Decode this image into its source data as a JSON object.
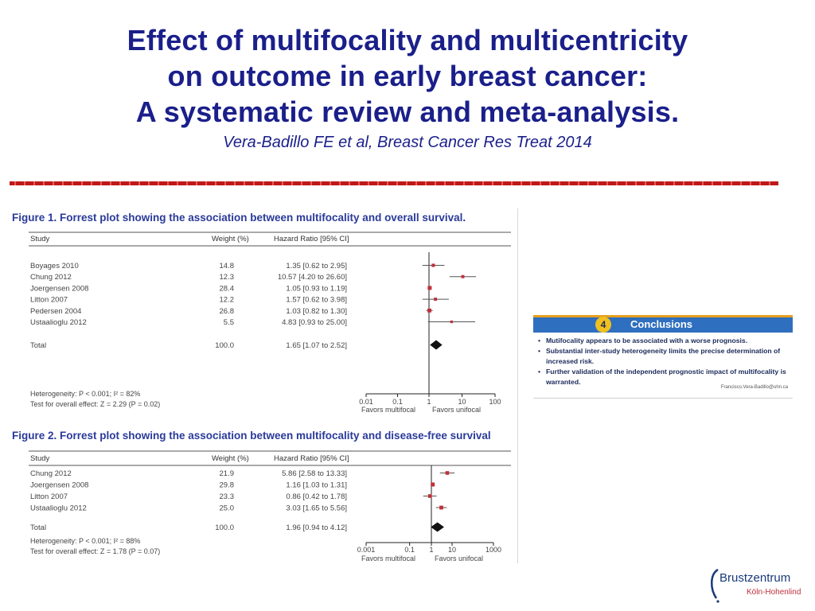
{
  "slide": {
    "title_lines": [
      "Effect of multifocality and multicentricity",
      "on outcome in early breast cancer:",
      "A systematic review and meta-analysis."
    ],
    "citation": "Vera-Badillo FE et al, Breast Cancer Res Treat 2014"
  },
  "colors": {
    "title": "#1a1f8a",
    "divider": "#c01818",
    "figure_title": "#2a3a9a",
    "point": "#c0303a",
    "conclusions_header": "#2f6fbf",
    "conclusions_badge": "#f0c020"
  },
  "chart_data": [
    {
      "type": "forest",
      "title": "Figure 1. Forrest plot showing the association between multifocality and overall survival.",
      "columns": [
        "Study",
        "Weight (%)",
        "Hazard Ratio [95% CI]"
      ],
      "studies": [
        {
          "name": "Boyages 2010",
          "weight": "14.8",
          "hr_label": "1.35 [0.62 to 2.95]",
          "hr": 1.35,
          "lo": 0.62,
          "hi": 2.95
        },
        {
          "name": "Chung 2012",
          "weight": "12.3",
          "hr_label": "10.57 [4.20 to 26.60]",
          "hr": 10.57,
          "lo": 4.2,
          "hi": 26.6
        },
        {
          "name": "Joergensen 2008",
          "weight": "28.4",
          "hr_label": "1.05 [0.93 to 1.19]",
          "hr": 1.05,
          "lo": 0.93,
          "hi": 1.19
        },
        {
          "name": "Litton 2007",
          "weight": "12.2",
          "hr_label": "1.57 [0.62 to 3.98]",
          "hr": 1.57,
          "lo": 0.62,
          "hi": 3.98
        },
        {
          "name": "Pedersen 2004",
          "weight": "26.8",
          "hr_label": "1.03 [0.82 to 1.30]",
          "hr": 1.03,
          "lo": 0.82,
          "hi": 1.3
        },
        {
          "name": "Ustaalioglu 2012",
          "weight": "5.5",
          "hr_label": "4.83 [0.93 to 25.00]",
          "hr": 4.83,
          "lo": 0.93,
          "hi": 25.0
        }
      ],
      "total": {
        "name": "Total",
        "weight": "100.0",
        "hr_label": "1.65 [1.07 to 2.52]",
        "hr": 1.65,
        "lo": 1.07,
        "hi": 2.52
      },
      "heterogeneity": "Heterogeneity: P < 0.001; I² = 82%",
      "overall_effect": "Test for overall effect: Z = 2.29 (P = 0.02)",
      "x_scale": "log",
      "xlim": [
        0.01,
        100
      ],
      "x_ticks": [
        {
          "value": 0.01,
          "label": "0.01"
        },
        {
          "value": 0.1,
          "label": "0.1"
        },
        {
          "value": 1,
          "label": "1"
        },
        {
          "value": 10,
          "label": "10"
        },
        {
          "value": 100,
          "label": "100"
        }
      ],
      "favors_left": "Favors multifocal",
      "favors_right": "Favors unifocal"
    },
    {
      "type": "forest",
      "title": "Figure 2. Forrest plot showing the association between multifocality and disease-free survival",
      "columns": [
        "Study",
        "Weight (%)",
        "Hazard Ratio [95% CI]"
      ],
      "studies": [
        {
          "name": "Chung 2012",
          "weight": "21.9",
          "hr_label": "5.86 [2.58 to 13.33]",
          "hr": 5.86,
          "lo": 2.58,
          "hi": 13.33
        },
        {
          "name": "Joergensen 2008",
          "weight": "29.8",
          "hr_label": "1.16 [1.03 to 1.31]",
          "hr": 1.16,
          "lo": 1.03,
          "hi": 1.31
        },
        {
          "name": "Litton 2007",
          "weight": "23.3",
          "hr_label": "0.86 [0.42 to 1.78]",
          "hr": 0.86,
          "lo": 0.42,
          "hi": 1.78
        },
        {
          "name": "Ustaalioglu 2012",
          "weight": "25.0",
          "hr_label": "3.03 [1.65 to 5.56]",
          "hr": 3.03,
          "lo": 1.65,
          "hi": 5.56
        }
      ],
      "total": {
        "name": "Total",
        "weight": "100.0",
        "hr_label": "1.96 [0.94 to 4.12]",
        "hr": 1.96,
        "lo": 0.94,
        "hi": 4.12
      },
      "heterogeneity": "Heterogeneity: P < 0.001; I² = 88%",
      "overall_effect": "Test for overall effect: Z = 1.78 (P = 0.07)",
      "x_scale": "log",
      "xlim": [
        0.001,
        1000
      ],
      "x_ticks": [
        {
          "value": 0.001,
          "label": "0.001"
        },
        {
          "value": 0.1,
          "label": "0.1"
        },
        {
          "value": 1,
          "label": "1"
        },
        {
          "value": 10,
          "label": "10"
        },
        {
          "value": 1000,
          "label": "1000"
        }
      ],
      "favors_left": "Favors multifocal",
      "favors_right": "Favors unifocal"
    }
  ],
  "conclusions": {
    "number": "4",
    "title": "Conclusions",
    "items": [
      "Mutifocality appears to be associated with a worse prognosis.",
      "Substantial inter-study heterogeneity limits the precise determination of increased risk.",
      "Further validation of the independent prognostic impact of multifocality is warranted."
    ],
    "email": "Francisco.Vera-Badillo@uhn.ca"
  },
  "logo": {
    "name": "Brustzentrum",
    "location": "Köln-Hohenlind"
  }
}
